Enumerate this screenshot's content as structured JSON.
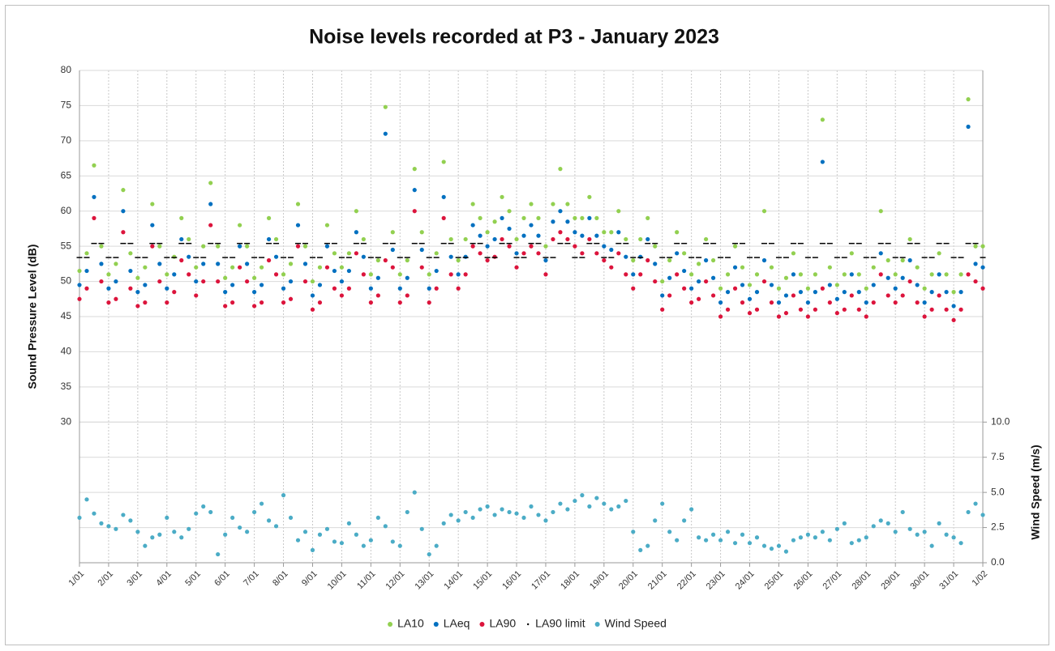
{
  "chart_data": {
    "type": "scatter",
    "title": "Noise levels recorded at P3 - January 2023",
    "y_label": "Sound Pressure Level (dB)",
    "y2_label": "Wind Speed (m/s)",
    "grid": true,
    "legend": "bottom",
    "xlim": [
      0,
      31
    ],
    "xticks": [
      {
        "value": 0,
        "label": "1/01"
      },
      {
        "value": 1,
        "label": "2/01"
      },
      {
        "value": 2,
        "label": "3/01"
      },
      {
        "value": 3,
        "label": "4/01"
      },
      {
        "value": 4,
        "label": "5/01"
      },
      {
        "value": 5,
        "label": "6/01"
      },
      {
        "value": 6,
        "label": "7/01"
      },
      {
        "value": 7,
        "label": "8/01"
      },
      {
        "value": 8,
        "label": "9/01"
      },
      {
        "value": 9,
        "label": "10/01"
      },
      {
        "value": 10,
        "label": "11/01"
      },
      {
        "value": 11,
        "label": "12/01"
      },
      {
        "value": 12,
        "label": "13/01"
      },
      {
        "value": 13,
        "label": "14/01"
      },
      {
        "value": 14,
        "label": "15/01"
      },
      {
        "value": 15,
        "label": "16/01"
      },
      {
        "value": 16,
        "label": "17/01"
      },
      {
        "value": 17,
        "label": "18/01"
      },
      {
        "value": 18,
        "label": "19/01"
      },
      {
        "value": 19,
        "label": "20/01"
      },
      {
        "value": 20,
        "label": "21/01"
      },
      {
        "value": 21,
        "label": "22/01"
      },
      {
        "value": 22,
        "label": "23/01"
      },
      {
        "value": 23,
        "label": "24/01"
      },
      {
        "value": 24,
        "label": "25/01"
      },
      {
        "value": 25,
        "label": "26/01"
      },
      {
        "value": 26,
        "label": "27/01"
      },
      {
        "value": 27,
        "label": "28/01"
      },
      {
        "value": 28,
        "label": "29/01"
      },
      {
        "value": 29,
        "label": "30/01"
      },
      {
        "value": 30,
        "label": "31/01"
      },
      {
        "value": 31,
        "label": "1/02"
      }
    ],
    "ylim": [
      10,
      80
    ],
    "yticks": [
      30,
      35,
      40,
      45,
      50,
      55,
      60,
      65,
      70,
      75,
      80
    ],
    "y2lim": [
      0,
      35
    ],
    "y2ticks": [
      {
        "value": 0,
        "label": "0.0"
      },
      {
        "value": 2.5,
        "label": "2.5"
      },
      {
        "value": 5,
        "label": "5.0"
      },
      {
        "value": 7.5,
        "label": "7.5"
      },
      {
        "value": 10,
        "label": "10.0"
      }
    ],
    "x": [
      0,
      0.25,
      0.5,
      0.75,
      1,
      1.25,
      1.5,
      1.75,
      2,
      2.25,
      2.5,
      2.75,
      3,
      3.25,
      3.5,
      3.75,
      4,
      4.25,
      4.5,
      4.75,
      5,
      5.25,
      5.5,
      5.75,
      6,
      6.25,
      6.5,
      6.75,
      7,
      7.25,
      7.5,
      7.75,
      8,
      8.25,
      8.5,
      8.75,
      9,
      9.25,
      9.5,
      9.75,
      10,
      10.25,
      10.5,
      10.75,
      11,
      11.25,
      11.5,
      11.75,
      12,
      12.25,
      12.5,
      12.75,
      13,
      13.25,
      13.5,
      13.75,
      14,
      14.25,
      14.5,
      14.75,
      15,
      15.25,
      15.5,
      15.75,
      16,
      16.25,
      16.5,
      16.75,
      17,
      17.25,
      17.5,
      17.75,
      18,
      18.25,
      18.5,
      18.75,
      19,
      19.25,
      19.5,
      19.75,
      20,
      20.25,
      20.5,
      20.75,
      21,
      21.25,
      21.5,
      21.75,
      22,
      22.25,
      22.5,
      22.75,
      23,
      23.25,
      23.5,
      23.75,
      24,
      24.25,
      24.5,
      24.75,
      25,
      25.25,
      25.5,
      25.75,
      26,
      26.25,
      26.5,
      26.75,
      27,
      27.25,
      27.5,
      27.75,
      28,
      28.25,
      28.5,
      28.75,
      29,
      29.25,
      29.5,
      29.75,
      30,
      30.25,
      30.5,
      30.75,
      31
    ],
    "series": [
      {
        "name": "LA10",
        "color": "#92d050",
        "marker": "dot",
        "values": [
          51.5,
          54,
          66.5,
          55,
          51,
          52.5,
          63,
          54,
          50.5,
          52,
          61,
          55,
          51,
          53.5,
          59,
          56,
          52,
          55,
          64,
          55,
          50.5,
          52,
          58,
          55,
          50.5,
          52,
          59,
          56,
          51,
          52.5,
          61,
          55,
          50,
          52,
          58,
          54,
          52,
          54,
          60,
          56,
          51,
          53,
          74.8,
          57,
          51,
          53,
          66,
          57,
          51,
          54,
          67,
          56,
          53,
          56,
          61,
          59,
          57,
          58.5,
          62,
          60,
          56,
          59,
          61,
          59,
          55,
          61,
          66,
          61,
          59,
          59,
          62,
          59,
          57,
          57,
          60,
          56,
          53,
          56,
          59,
          55,
          50,
          53,
          57,
          54,
          51,
          52.5,
          56,
          53,
          49,
          51,
          55,
          52,
          49.5,
          51,
          60,
          52,
          49,
          50.5,
          54,
          51,
          49,
          51,
          73,
          52,
          49.5,
          51,
          54,
          51,
          49,
          52,
          60,
          53,
          51,
          53,
          56,
          52,
          49,
          51,
          54,
          51,
          48.5,
          51,
          75.9,
          55,
          55
        ]
      },
      {
        "name": "LAeq",
        "color": "#0070c0",
        "marker": "dot",
        "values": [
          49.5,
          51.5,
          62,
          52.5,
          49,
          50,
          60,
          51.5,
          48.5,
          49.5,
          58,
          52.5,
          49,
          51,
          56,
          53.5,
          50,
          52.5,
          61,
          52.5,
          48.5,
          49.5,
          55,
          52.5,
          48.5,
          49.5,
          56,
          53.5,
          49,
          50,
          58,
          52.5,
          48,
          49.5,
          55,
          51.5,
          50,
          51.5,
          57,
          53.5,
          49,
          50.5,
          71,
          54.5,
          49,
          50.5,
          63,
          54.5,
          49,
          51.5,
          62,
          53.5,
          51,
          53.5,
          58,
          56.5,
          55,
          56,
          59,
          57.5,
          54,
          56.5,
          58,
          56.5,
          53,
          58.5,
          60,
          58.5,
          57,
          56.5,
          59,
          56.5,
          55,
          54.5,
          57,
          53.5,
          51,
          53.5,
          56,
          52.5,
          48,
          50.5,
          54,
          51.5,
          49,
          50,
          53,
          50.5,
          47,
          48.5,
          52,
          49.5,
          47.5,
          48.5,
          53,
          49.5,
          47,
          48,
          51,
          48.5,
          47,
          48.5,
          67,
          49.5,
          47.5,
          48.5,
          51,
          48.5,
          47,
          49.5,
          54,
          50.5,
          49,
          50.5,
          53,
          49.5,
          47,
          48.5,
          51,
          48.5,
          46.5,
          48.5,
          72,
          52.5,
          52
        ]
      },
      {
        "name": "LA90",
        "color": "#dc143c",
        "marker": "dot",
        "values": [
          47.5,
          49,
          59,
          50,
          47,
          47.5,
          57,
          49,
          46.5,
          47,
          55,
          50,
          47,
          48.5,
          53,
          51,
          48,
          50,
          58,
          50,
          46.5,
          47,
          52,
          50,
          46.5,
          47,
          53,
          51,
          47,
          47.5,
          55,
          50,
          46,
          47,
          52,
          49,
          48,
          49,
          54,
          51,
          47,
          48,
          53,
          52,
          47,
          48,
          60,
          52,
          47,
          49,
          59,
          51,
          49,
          51,
          55,
          54,
          53,
          53.5,
          56,
          55,
          52,
          54,
          55,
          54,
          51,
          56,
          57,
          56,
          55,
          54,
          56,
          54,
          53,
          52,
          54,
          51,
          49,
          51,
          53,
          50,
          46,
          48,
          51,
          49,
          47,
          47.5,
          50,
          48,
          45,
          46,
          49,
          47,
          45.5,
          46,
          50,
          47,
          45,
          45.5,
          48,
          46,
          45,
          46,
          49,
          47,
          45.5,
          46,
          48,
          46,
          45,
          47,
          51,
          48,
          47,
          48,
          50,
          47,
          45,
          46,
          48,
          46,
          44.5,
          46,
          51,
          50,
          49
        ]
      },
      {
        "name": "LA90 limit",
        "color": "#000000",
        "marker": "dash",
        "values": [
          53.4,
          53.4,
          55.4,
          55.4,
          53.4,
          53.4,
          55.4,
          55.4,
          53.4,
          53.4,
          55.4,
          55.4,
          53.4,
          53.4,
          55.4,
          55.4,
          53.4,
          53.4,
          55.4,
          55.4,
          53.4,
          53.4,
          55.4,
          55.4,
          53.4,
          53.4,
          55.4,
          55.4,
          53.4,
          53.4,
          55.4,
          55.4,
          53.4,
          53.4,
          55.4,
          55.4,
          53.4,
          53.4,
          55.4,
          55.4,
          53.4,
          53.4,
          55.4,
          55.4,
          53.4,
          53.4,
          55.4,
          55.4,
          53.4,
          53.4,
          55.4,
          55.4,
          53.4,
          53.4,
          55.4,
          55.4,
          53.4,
          53.4,
          55.4,
          55.4,
          53.4,
          53.4,
          55.4,
          55.4,
          53.4,
          53.4,
          55.4,
          55.4,
          53.4,
          53.4,
          55.4,
          55.4,
          53.4,
          53.4,
          55.4,
          55.4,
          53.4,
          53.4,
          55.4,
          55.4,
          53.4,
          53.4,
          55.4,
          55.4,
          53.4,
          53.4,
          55.4,
          55.4,
          53.4,
          53.4,
          55.4,
          55.4,
          53.4,
          53.4,
          55.4,
          55.4,
          53.4,
          53.4,
          55.4,
          55.4,
          53.4,
          53.4,
          55.4,
          55.4,
          53.4,
          53.4,
          55.4,
          55.4,
          53.4,
          53.4,
          55.4,
          55.4,
          53.4,
          53.4,
          55.4,
          55.4,
          53.4,
          53.4,
          55.4,
          55.4,
          53.4,
          53.4,
          55.4,
          55.4,
          53.4
        ]
      },
      {
        "name": "Wind Speed",
        "color": "#4bacc6",
        "marker": "dot",
        "axis": "y2",
        "values": [
          3.2,
          4.5,
          3.5,
          2.8,
          2.6,
          2.4,
          3.4,
          3.0,
          2.2,
          1.2,
          1.8,
          2.0,
          3.2,
          2.2,
          1.8,
          2.4,
          3.5,
          4.0,
          3.6,
          0.6,
          2.0,
          3.2,
          2.5,
          2.2,
          3.6,
          4.2,
          3.0,
          2.6,
          4.8,
          3.2,
          1.6,
          2.2,
          0.9,
          2.0,
          2.4,
          1.5,
          1.4,
          2.8,
          2.0,
          1.2,
          1.6,
          3.2,
          2.6,
          1.5,
          1.2,
          3.6,
          5.0,
          2.4,
          0.6,
          1.2,
          2.8,
          3.4,
          3.0,
          3.6,
          3.2,
          3.8,
          4.0,
          3.4,
          3.8,
          3.6,
          3.5,
          3.2,
          4.0,
          3.4,
          3.0,
          3.6,
          4.2,
          3.8,
          4.4,
          4.8,
          4.0,
          4.6,
          4.2,
          3.8,
          4.0,
          4.4,
          2.2,
          0.9,
          1.2,
          3.0,
          4.2,
          2.2,
          1.6,
          3.0,
          3.8,
          1.8,
          1.6,
          2.0,
          1.6,
          2.2,
          1.4,
          2.0,
          1.4,
          1.8,
          1.2,
          1.0,
          1.2,
          0.8,
          1.6,
          1.8,
          2.0,
          1.8,
          2.2,
          1.6,
          2.4,
          2.8,
          1.4,
          1.6,
          1.8,
          2.6,
          3.0,
          2.8,
          2.2,
          3.6,
          2.4,
          2.0,
          2.2,
          1.2,
          2.8,
          2.0,
          1.8,
          1.4,
          3.6,
          4.2,
          3.4
        ]
      }
    ]
  }
}
